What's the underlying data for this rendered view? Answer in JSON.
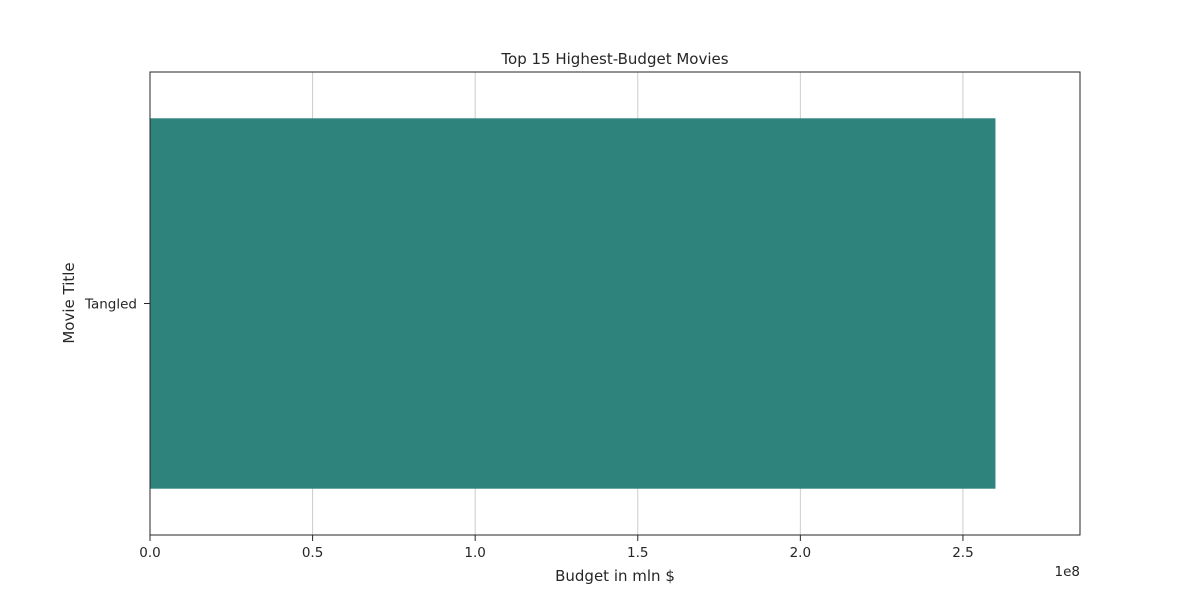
{
  "chart_data": {
    "type": "bar",
    "orientation": "horizontal",
    "title": "Top 15 Highest-Budget Movies",
    "xlabel": "Budget in mln $",
    "ylabel": "Movie Title",
    "categories": [
      "Tangled"
    ],
    "values": [
      260000000
    ],
    "xlim": [
      0,
      286000000
    ],
    "xticks": [
      0,
      50000000,
      100000000,
      150000000,
      200000000,
      250000000
    ],
    "xtick_labels": [
      "0.0",
      "0.5",
      "1.0",
      "1.5",
      "2.0",
      "2.5"
    ],
    "offset_label": "1e8",
    "grid": {
      "x": true,
      "y": false
    },
    "colors": {
      "bar": "#2e837d",
      "grid": "#cccccc",
      "axis": "#262626",
      "background": "#ffffff"
    }
  }
}
